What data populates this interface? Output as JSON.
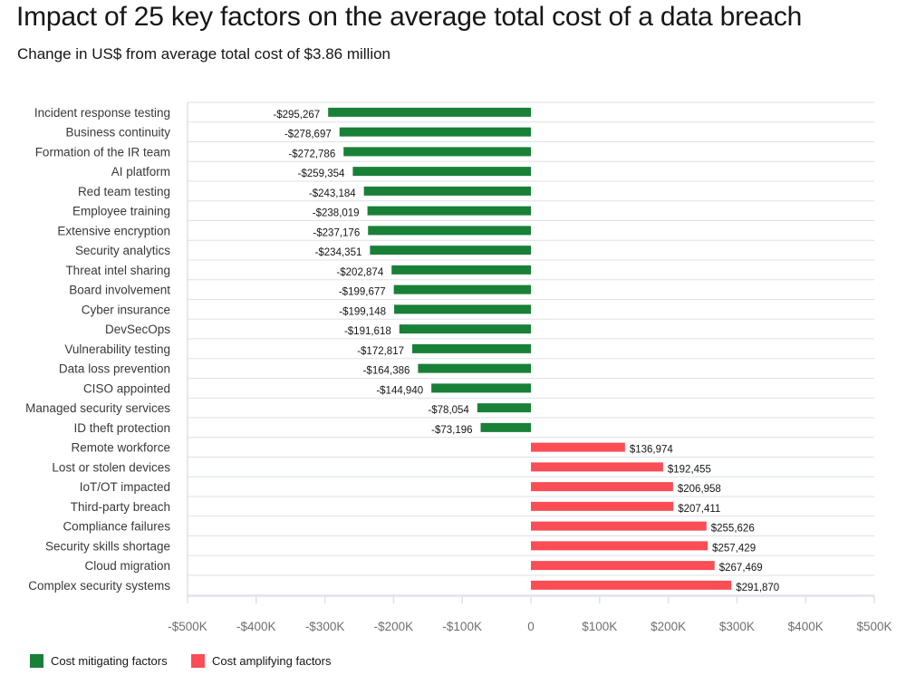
{
  "title": "Impact of 25 key factors on the average total cost of a data breach",
  "subtitle": "Change in US$ from average total cost of $3.86 million",
  "colors": {
    "mitigating": "#198038",
    "amplifying": "#fa4d56",
    "grid": "#dde1e6"
  },
  "legend": [
    {
      "label": "Cost mitigating factors",
      "color": "#198038"
    },
    {
      "label": "Cost amplifying factors",
      "color": "#fa4d56"
    }
  ],
  "chart_data": {
    "type": "bar",
    "orientation": "horizontal",
    "title": "Impact of 25 key factors on the average total cost of a data breach",
    "subtitle": "Change in US$ from average total cost of $3.86 million",
    "xlim": [
      -500000,
      500000
    ],
    "xticks": [
      -500000,
      -400000,
      -300000,
      -200000,
      -100000,
      0,
      100000,
      200000,
      300000,
      400000,
      500000
    ],
    "xtick_labels": [
      "-$500K",
      "-$400K",
      "-$300K",
      "-$200K",
      "-$100K",
      "0",
      "$100K",
      "$200K",
      "$300K",
      "$400K",
      "$500K"
    ],
    "categories": [
      "Incident response testing",
      "Business continuity",
      "Formation of the IR team",
      "AI platform",
      "Red team testing",
      "Employee training",
      "Extensive encryption",
      "Security analytics",
      "Threat intel sharing",
      "Board involvement",
      "Cyber insurance",
      "DevSecOps",
      "Vulnerability testing",
      "Data loss prevention",
      "CISO appointed",
      "Managed security services",
      "ID theft protection",
      "Remote workforce",
      "Lost or stolen devices",
      "IoT/OT impacted",
      "Third-party breach",
      "Compliance failures",
      "Security skills shortage",
      "Cloud migration",
      "Complex security systems"
    ],
    "values": [
      -295267,
      -278697,
      -272786,
      -259354,
      -243184,
      -238019,
      -237176,
      -234351,
      -202874,
      -199677,
      -199148,
      -191618,
      -172817,
      -164386,
      -144940,
      -78054,
      -73196,
      136974,
      192455,
      206958,
      207411,
      255626,
      257429,
      267469,
      291870
    ],
    "value_labels": [
      "-$295,267",
      "-$278,697",
      "-$272,786",
      "-$259,354",
      "-$243,184",
      "-$238,019",
      "-$237,176",
      "-$234,351",
      "-$202,874",
      "-$199,677",
      "-$199,148",
      "-$191,618",
      "-$172,817",
      "-$164,386",
      "-$144,940",
      "-$78,054",
      "-$73,196",
      "$136,974",
      "$192,455",
      "$206,958",
      "$207,411",
      "$255,626",
      "$257,429",
      "$267,469",
      "$291,870"
    ],
    "series_legend": [
      "Cost mitigating factors",
      "Cost amplifying factors"
    ],
    "grid": true
  }
}
